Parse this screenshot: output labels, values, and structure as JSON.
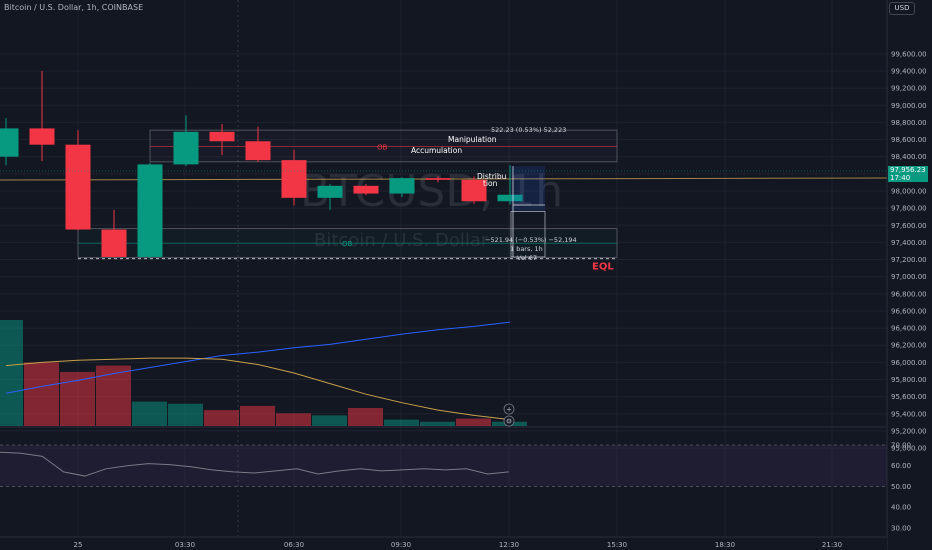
{
  "header": {
    "symbol_line": "Bitcoin / U.S. Dollar, 1h, COINBASE",
    "currency_button": "USD"
  },
  "watermark": {
    "ticker": "BTCUSD, 1h",
    "name": "Bitcoin / U.S. Dollar"
  },
  "last_price": {
    "value": "97,956.23",
    "countdown": "17:40"
  },
  "colors": {
    "background": "#131722",
    "up": "#089981",
    "down": "#f23645",
    "grid": "#1e222d",
    "ma_long": "#2962ff",
    "ma_short": "#c8a04a"
  },
  "annotations": {
    "ob_upper": "OB",
    "ob_lower": "OB",
    "accumulation": "Accumulation",
    "manipulation": "Manipulation",
    "distribution_1": "Distribu",
    "distribution_2": "tion",
    "eql": "EQL",
    "measure_up": "522.23 (0.53%) 52,223",
    "measure_down": "−521.94 (−0.53%) −52,194",
    "measure_bars": "1 bars, 1h",
    "measure_vol": "Vol 67"
  },
  "chart_data": {
    "type": "candlestick",
    "title": "Bitcoin / U.S. Dollar, 1h, COINBASE",
    "price_axis": {
      "ylim": [
        94960,
        100100
      ],
      "tick_labels": [
        "99,600.00",
        "99,400.00",
        "99,200.00",
        "99,000.00",
        "98,800.00",
        "98,600.00",
        "98,400.00",
        "98,200.00",
        "98,000.00",
        "97,800.00",
        "97,600.00",
        "97,400.00",
        "97,200.00",
        "97,000.00",
        "96,800.00",
        "96,600.00",
        "96,400.00",
        "96,200.00",
        "96,000.00",
        "95,800.00",
        "95,600.00",
        "95,400.00",
        "95,200.00",
        "95,000.00"
      ]
    },
    "time_axis": {
      "tick_labels": [
        "25",
        "03:30",
        "06:30",
        "09:30",
        "12:30",
        "15:30",
        "18:30",
        "21:30"
      ]
    },
    "candles": [
      {
        "open": 98400,
        "high": 98850,
        "low": 98300,
        "close": 98730
      },
      {
        "open": 98730,
        "high": 99400,
        "low": 98350,
        "close": 98540
      },
      {
        "open": 98540,
        "high": 98710,
        "low": 97540,
        "close": 97550
      },
      {
        "open": 97550,
        "high": 97780,
        "low": 97220,
        "close": 97230
      },
      {
        "open": 97230,
        "high": 98330,
        "low": 97210,
        "close": 98310
      },
      {
        "open": 98310,
        "high": 98880,
        "low": 98290,
        "close": 98690
      },
      {
        "open": 98690,
        "high": 98780,
        "low": 98420,
        "close": 98580
      },
      {
        "open": 98580,
        "high": 98750,
        "low": 98340,
        "close": 98360
      },
      {
        "open": 98360,
        "high": 98480,
        "low": 97830,
        "close": 97920
      },
      {
        "open": 97920,
        "high": 98080,
        "low": 97780,
        "close": 98060
      },
      {
        "open": 98060,
        "high": 98080,
        "low": 97950,
        "close": 97970
      },
      {
        "open": 97970,
        "high": 98160,
        "low": 97930,
        "close": 98150
      },
      {
        "open": 98150,
        "high": 98170,
        "low": 98100,
        "close": 98130
      },
      {
        "open": 98130,
        "high": 98170,
        "low": 97850,
        "close": 97880
      },
      {
        "open": 97880,
        "high": 98300,
        "low": 97840,
        "close": 97956
      }
    ],
    "volume": [
      {
        "value": 1.0,
        "dir": "up"
      },
      {
        "value": 0.6,
        "dir": "down"
      },
      {
        "value": 0.51,
        "dir": "down"
      },
      {
        "value": 0.57,
        "dir": "down"
      },
      {
        "value": 0.23,
        "dir": "up"
      },
      {
        "value": 0.21,
        "dir": "up"
      },
      {
        "value": 0.15,
        "dir": "down"
      },
      {
        "value": 0.19,
        "dir": "down"
      },
      {
        "value": 0.12,
        "dir": "down"
      },
      {
        "value": 0.1,
        "dir": "up"
      },
      {
        "value": 0.17,
        "dir": "down"
      },
      {
        "value": 0.06,
        "dir": "up"
      },
      {
        "value": 0.04,
        "dir": "up"
      },
      {
        "value": 0.07,
        "dir": "down"
      },
      {
        "value": 0.04,
        "dir": "up"
      }
    ],
    "ma_long": [
      95640,
      95720,
      95790,
      95870,
      95940,
      96010,
      96080,
      96120,
      96170,
      96210,
      96270,
      96330,
      96380,
      96420,
      96470
    ],
    "ma_short_volume": [
      0.57,
      0.6,
      0.62,
      0.63,
      0.64,
      0.64,
      0.63,
      0.58,
      0.5,
      0.4,
      0.3,
      0.22,
      0.15,
      0.1,
      0.06
    ],
    "zones": {
      "ob_upper": [
        98340,
        98710
      ],
      "ob_lower": [
        97225,
        97560
      ],
      "ob_upper_line": 98520,
      "ob_lower_line": 97390,
      "eql_line": 97210
    },
    "measure": {
      "up_top": 98290,
      "mid": 97760,
      "down_bottom": 97230
    },
    "rsi": {
      "ylim": [
        27,
        74
      ],
      "tick_labels": [
        "70.00",
        "60.00",
        "50.00",
        "40.00",
        "30.00"
      ],
      "band": [
        50,
        70
      ],
      "values": [
        66.5,
        66.0,
        64.5,
        57.0,
        55.0,
        58.5,
        60.0,
        61.0,
        60.5,
        59.5,
        58.0,
        57.0,
        56.5,
        57.5,
        58.5,
        56.0,
        57.5,
        58.5,
        57.5,
        58.0,
        58.5,
        58.0,
        58.5,
        56.0,
        57.0
      ]
    }
  }
}
